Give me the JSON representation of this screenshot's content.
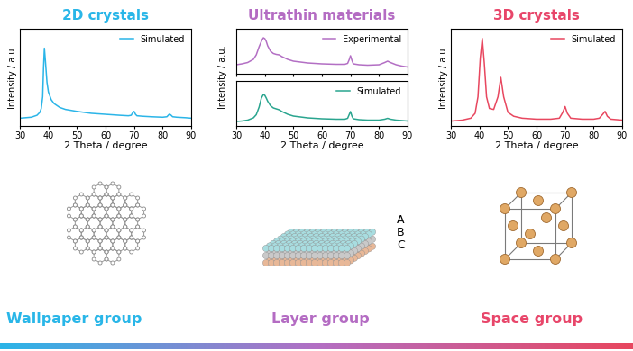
{
  "chart_data": [
    {
      "type": "line",
      "title": "2D crystals",
      "color": "#29b6e8",
      "x_label": "2 Theta / degree",
      "y_label": "Intensity / a.u.",
      "xlim": [
        30,
        90
      ],
      "xticks": [
        30,
        40,
        50,
        60,
        70,
        80,
        90
      ],
      "ylim": [
        0,
        100
      ],
      "yticks": [],
      "tick_labels": "x",
      "legend": "upper right",
      "annotations": [
        "Wallpaper group"
      ],
      "series": [
        {
          "name": "Simulated",
          "color": "#2bb5e8",
          "x": [
            30,
            32,
            34,
            35,
            36,
            37,
            37.5,
            38,
            38.3,
            38.6,
            39,
            39.5,
            40,
            41,
            42,
            44,
            46,
            50,
            55,
            60,
            65,
            68,
            69,
            69.6,
            70,
            70.5,
            71,
            73,
            76,
            80,
            81.5,
            82.3,
            82.8,
            83.5,
            85,
            88,
            90
          ],
          "values": [
            8,
            8.5,
            9,
            10,
            11,
            14,
            18,
            30,
            60,
            80,
            65,
            45,
            35,
            27,
            23,
            19,
            17,
            15,
            13,
            12,
            11,
            10.5,
            11,
            14,
            15,
            12,
            10.5,
            10,
            9.5,
            9,
            9.5,
            12,
            11.5,
            9.5,
            9,
            8.5,
            8
          ]
        }
      ]
    },
    {
      "type": "line",
      "title": "Ultrathin materials",
      "color": "#b46cc3",
      "xlim": [
        30,
        90
      ],
      "xticks": [
        30,
        40,
        50,
        60,
        70,
        80,
        90
      ],
      "ylim": [
        0,
        100
      ],
      "yticks": [],
      "tick_labels": false,
      "legend": "upper right",
      "annotations": [
        "Layer group",
        "A",
        "B",
        "C"
      ],
      "series": [
        {
          "name": "Experimental",
          "color": "#b36fc4",
          "x": [
            30,
            32,
            34,
            36,
            37,
            38,
            39,
            39.5,
            40,
            40.5,
            41,
            42,
            43,
            44,
            45,
            46,
            48,
            50,
            55,
            60,
            65,
            68,
            69,
            69.6,
            70,
            70.5,
            71,
            73,
            76,
            80,
            82,
            83,
            84,
            86,
            88,
            90
          ],
          "values": [
            20,
            22,
            25,
            32,
            42,
            60,
            75,
            80,
            78,
            72,
            62,
            50,
            45,
            43,
            42,
            38,
            32,
            28,
            24,
            22,
            21,
            21,
            23,
            32,
            40,
            30,
            22,
            20,
            19,
            20,
            25,
            28,
            25,
            20,
            17,
            15
          ]
        }
      ]
    },
    {
      "type": "line",
      "color": "#b46cc3",
      "x_label": "2 Theta / degree",
      "y_label": "Intensity / a.u.",
      "xlim": [
        30,
        90
      ],
      "xticks": [
        30,
        40,
        50,
        60,
        70,
        80,
        90
      ],
      "ylim": [
        0,
        100
      ],
      "yticks": [],
      "tick_labels": "x",
      "legend": "upper right",
      "series": [
        {
          "name": "Simulated",
          "color": "#2aa58f",
          "x": [
            30,
            32,
            34,
            36,
            37,
            38,
            38.8,
            39.5,
            40,
            40.5,
            41,
            42,
            43,
            44,
            45,
            46,
            48,
            50,
            55,
            60,
            65,
            68,
            69,
            69.6,
            70,
            70.5,
            71,
            73,
            76,
            80,
            82,
            83,
            84,
            86,
            88,
            90
          ],
          "values": [
            10,
            11,
            13,
            18,
            25,
            42,
            62,
            70,
            68,
            62,
            55,
            45,
            40,
            38,
            36,
            32,
            26,
            22,
            18,
            16,
            15,
            15,
            17,
            26,
            32,
            22,
            16,
            14,
            13,
            13,
            15,
            17,
            15,
            13,
            12,
            11
          ]
        }
      ]
    },
    {
      "type": "line",
      "title": "3D crystals",
      "color": "#e8466a",
      "x_label": "2 Theta / degree",
      "y_label": "Intensity / a.u.",
      "xlim": [
        30,
        90
      ],
      "xticks": [
        30,
        40,
        50,
        60,
        70,
        80,
        90
      ],
      "ylim": [
        0,
        100
      ],
      "yticks": [],
      "tick_labels": "x",
      "legend": "upper right",
      "annotations": [
        "Space group"
      ],
      "series": [
        {
          "name": "Simulated",
          "color": "#e8475f",
          "x": [
            30,
            34,
            37,
            38.5,
            39.5,
            40.3,
            41,
            41.7,
            42.5,
            43.5,
            45,
            46.5,
            47.5,
            48.5,
            50,
            52,
            55,
            60,
            65,
            68,
            69.2,
            70,
            70.8,
            72,
            76,
            80,
            82,
            83.2,
            84,
            84.8,
            86,
            90
          ],
          "values": [
            5,
            6,
            8,
            13,
            30,
            70,
            90,
            65,
            30,
            18,
            17,
            30,
            50,
            30,
            14,
            10,
            8,
            7,
            7,
            8,
            14,
            20,
            13,
            8,
            7,
            7,
            8,
            12,
            15,
            10,
            7,
            6
          ]
        }
      ]
    }
  ]
}
